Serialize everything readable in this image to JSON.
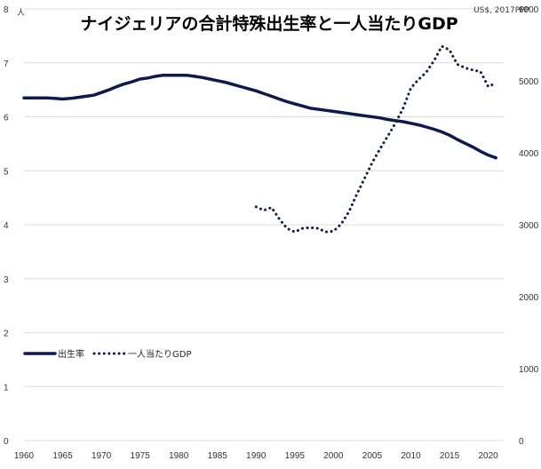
{
  "chart_data": {
    "type": "line",
    "title": "ナイジェリアの合計特殊出生率と一人当たりGDP",
    "left_axis_unit": "人",
    "right_axis_unit": "US$, 2017PPP",
    "x_ticks": [
      "1960",
      "1965",
      "1970",
      "1975",
      "1980",
      "1985",
      "1990",
      "1995",
      "2000",
      "2005",
      "2010",
      "2015",
      "2020"
    ],
    "xlim": [
      1960,
      2022
    ],
    "ylim_left": [
      0,
      8
    ],
    "ylim_right": [
      0,
      6000
    ],
    "y_left_ticks": [
      "0",
      "1",
      "2",
      "3",
      "4",
      "5",
      "6",
      "7",
      "8"
    ],
    "y_right_ticks": [
      "0",
      "1000",
      "2000",
      "3000",
      "4000",
      "5000",
      "6000"
    ],
    "grid": true,
    "legend_position": "lower-left",
    "series": [
      {
        "name": "出生率",
        "axis": "left",
        "style": "solid",
        "color": "#0d1b4c",
        "x": [
          1960,
          1961,
          1962,
          1963,
          1964,
          1965,
          1966,
          1967,
          1968,
          1969,
          1970,
          1971,
          1972,
          1973,
          1974,
          1975,
          1976,
          1977,
          1978,
          1979,
          1980,
          1981,
          1982,
          1983,
          1984,
          1985,
          1986,
          1987,
          1988,
          1989,
          1990,
          1991,
          1992,
          1993,
          1994,
          1995,
          1996,
          1997,
          1998,
          1999,
          2000,
          2001,
          2002,
          2003,
          2004,
          2005,
          2006,
          2007,
          2008,
          2009,
          2010,
          2011,
          2012,
          2013,
          2014,
          2015,
          2016,
          2017,
          2018,
          2019,
          2020,
          2021
        ],
        "values": [
          6.35,
          6.35,
          6.35,
          6.35,
          6.34,
          6.33,
          6.34,
          6.36,
          6.38,
          6.4,
          6.45,
          6.5,
          6.56,
          6.61,
          6.65,
          6.7,
          6.72,
          6.75,
          6.77,
          6.77,
          6.77,
          6.77,
          6.75,
          6.73,
          6.7,
          6.67,
          6.64,
          6.6,
          6.56,
          6.52,
          6.48,
          6.43,
          6.38,
          6.33,
          6.28,
          6.24,
          6.2,
          6.16,
          6.14,
          6.12,
          6.1,
          6.08,
          6.06,
          6.04,
          6.02,
          6.0,
          5.98,
          5.95,
          5.93,
          5.91,
          5.88,
          5.85,
          5.81,
          5.77,
          5.72,
          5.66,
          5.58,
          5.51,
          5.44,
          5.36,
          5.29,
          5.24
        ]
      },
      {
        "name": "一人当たりGDP",
        "axis": "right",
        "style": "dotted",
        "color": "#0d1b4c",
        "x": [
          1990,
          1991,
          1992,
          1993,
          1994,
          1995,
          1996,
          1997,
          1998,
          1999,
          2000,
          2001,
          2002,
          2003,
          2004,
          2005,
          2006,
          2007,
          2008,
          2009,
          2010,
          2011,
          2012,
          2013,
          2014,
          2015,
          2016,
          2017,
          2018,
          2019,
          2020,
          2021
        ],
        "values": [
          3250,
          3200,
          3240,
          3080,
          2950,
          2900,
          2950,
          2960,
          2950,
          2900,
          2910,
          3010,
          3180,
          3420,
          3640,
          3860,
          4050,
          4230,
          4410,
          4620,
          4900,
          5020,
          5120,
          5280,
          5480,
          5430,
          5230,
          5180,
          5150,
          5130,
          4920,
          4970
        ]
      }
    ]
  }
}
